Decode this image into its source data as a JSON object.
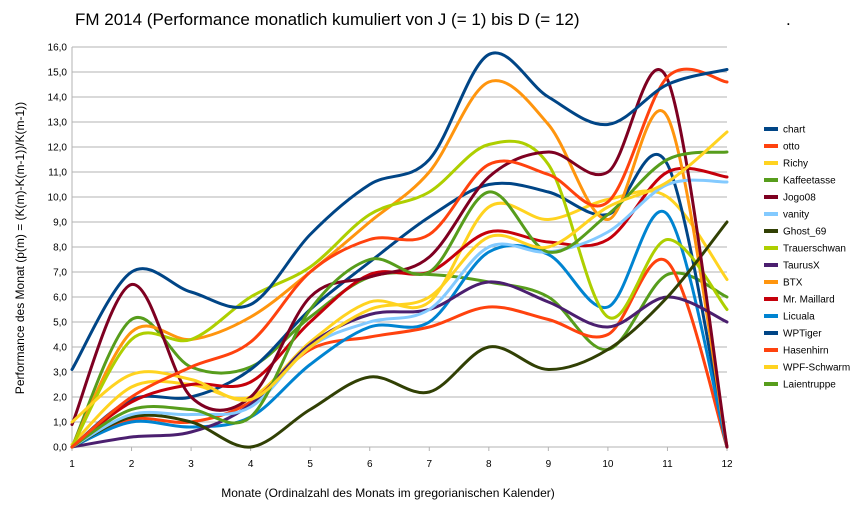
{
  "chart_data": {
    "type": "line",
    "title": "FM 2014 (Performance monatlich kumuliert von J (= 1) bis D (= 12)",
    "title_suffix": ".",
    "xlabel": "Monate (Ordinalzahl des Monats im gregorianischen Kalender)",
    "ylabel": "Performance des Monat (p(m) = (K(m)-K(m-1))/K(m-1))",
    "xlim": [
      1,
      12
    ],
    "ylim": [
      0,
      16
    ],
    "x_ticks": [
      "1",
      "2",
      "3",
      "4",
      "5",
      "6",
      "7",
      "8",
      "9",
      "10",
      "11",
      "12"
    ],
    "y_ticks": [
      "0,0",
      "1,0",
      "2,0",
      "3,0",
      "4,0",
      "5,0",
      "6,0",
      "7,0",
      "8,0",
      "9,0",
      "10,0",
      "11,0",
      "12,0",
      "13,0",
      "14,0",
      "15,0",
      "16,0"
    ],
    "grid": "horizontal",
    "legend_position": "right",
    "x": [
      1,
      2,
      3,
      4,
      5,
      6,
      7,
      8,
      9,
      10,
      11,
      12
    ],
    "series": [
      {
        "name": "chart",
        "color": "#004586",
        "values": [
          3.1,
          7.0,
          6.2,
          5.7,
          8.5,
          10.5,
          11.5,
          15.7,
          14.0,
          12.9,
          14.5,
          15.1
        ]
      },
      {
        "name": "otto",
        "color": "#ff420e",
        "values": [
          0.0,
          2.0,
          3.2,
          4.2,
          7.0,
          8.3,
          8.5,
          11.3,
          10.9,
          9.8,
          14.8,
          14.6
        ]
      },
      {
        "name": "Richy",
        "color": "#ffd320",
        "values": [
          1.0,
          2.9,
          2.7,
          1.9,
          4.0,
          5.5,
          6.0,
          8.4,
          8.0,
          9.6,
          10.6,
          12.6
        ]
      },
      {
        "name": "Kaffeetasse",
        "color": "#579d1c",
        "values": [
          0.0,
          1.5,
          1.5,
          1.2,
          5.5,
          7.5,
          7.0,
          10.2,
          7.8,
          9.3,
          11.5,
          11.8
        ]
      },
      {
        "name": "Jogo08",
        "color": "#7e0021",
        "values": [
          0.9,
          6.5,
          2.0,
          2.0,
          6.0,
          6.8,
          7.6,
          10.8,
          11.8,
          11.0,
          14.7,
          0.0
        ]
      },
      {
        "name": "vanity",
        "color": "#83caff",
        "values": [
          0.0,
          1.3,
          1.3,
          1.6,
          4.0,
          5.0,
          5.5,
          8.0,
          7.8,
          8.6,
          10.5,
          10.6
        ]
      },
      {
        "name": "Ghost_69",
        "color": "#314004",
        "values": [
          0.0,
          1.2,
          1.0,
          0.0,
          1.5,
          2.8,
          2.2,
          4.0,
          3.1,
          3.9,
          6.0,
          9.0
        ]
      },
      {
        "name": "Trauerschwan",
        "color": "#aecf00",
        "values": [
          0.0,
          4.3,
          4.3,
          6.0,
          7.2,
          9.3,
          10.2,
          12.1,
          11.3,
          5.2,
          8.3,
          5.5
        ]
      },
      {
        "name": "TaurusX",
        "color": "#4b1f6f",
        "values": [
          0.0,
          0.4,
          0.6,
          1.7,
          4.1,
          5.3,
          5.5,
          6.6,
          5.8,
          4.8,
          6.0,
          5.0
        ]
      },
      {
        "name": "BTX",
        "color": "#ff950e",
        "values": [
          0.0,
          4.6,
          4.3,
          5.2,
          7.0,
          9.0,
          11.0,
          14.6,
          12.9,
          9.1,
          13.2,
          0.0
        ]
      },
      {
        "name": "Mr. Maillard",
        "color": "#c5000b",
        "values": [
          0.0,
          1.8,
          2.5,
          2.6,
          5.0,
          6.9,
          7.0,
          8.6,
          8.2,
          8.3,
          11.0,
          10.8
        ]
      },
      {
        "name": "Licuala",
        "color": "#0084d1",
        "values": [
          0.0,
          1.0,
          0.8,
          1.2,
          3.3,
          4.8,
          5.0,
          7.8,
          7.7,
          5.6,
          9.3,
          0.0
        ]
      },
      {
        "name": "WPTiger",
        "color": "#004586",
        "values": [
          0.0,
          1.9,
          2.0,
          3.1,
          5.5,
          7.4,
          9.2,
          10.5,
          10.2,
          9.3,
          11.3,
          0.0
        ]
      },
      {
        "name": "Hasenhirn",
        "color": "#ff420e",
        "values": [
          0.0,
          1.1,
          1.0,
          1.8,
          3.9,
          4.4,
          4.8,
          5.6,
          5.1,
          4.5,
          7.4,
          0.0
        ]
      },
      {
        "name": "WPF-Schwarm",
        "color": "#ffd320",
        "values": [
          0.1,
          2.4,
          2.5,
          2.0,
          4.2,
          5.8,
          5.8,
          9.6,
          9.1,
          9.9,
          10.0,
          6.7
        ]
      },
      {
        "name": "Laientruppe",
        "color": "#579d1c",
        "values": [
          0.0,
          5.1,
          3.2,
          3.2,
          5.2,
          6.8,
          6.9,
          6.6,
          6.0,
          3.9,
          6.9,
          6.0
        ]
      }
    ]
  }
}
